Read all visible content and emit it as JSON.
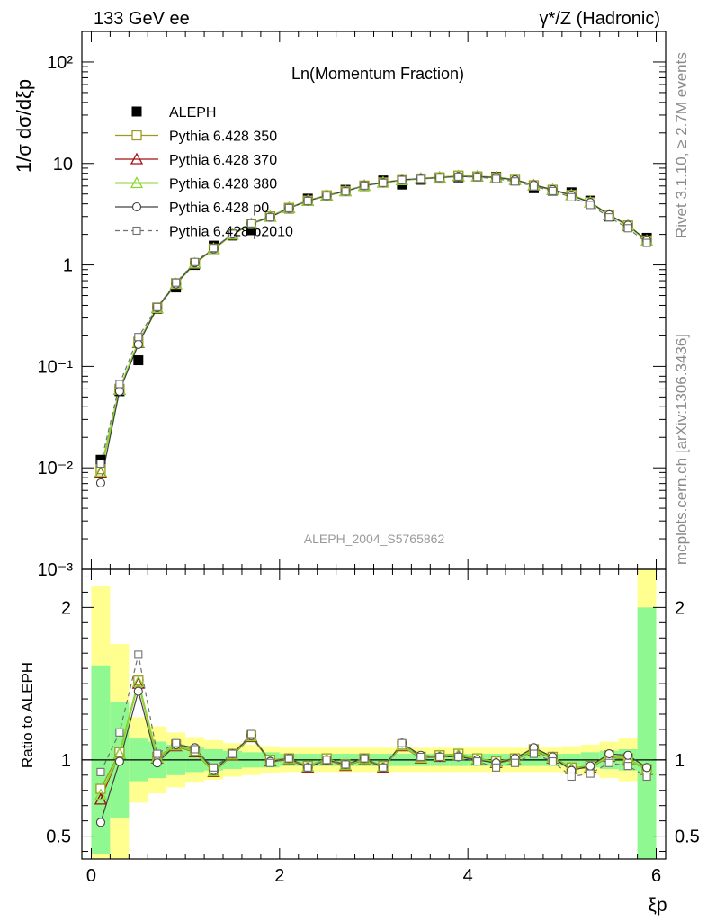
{
  "header": {
    "left": "133 GeV ee",
    "right": "γ*/Z (Hadronic)"
  },
  "plot_title": "Ln(Momentum Fraction)",
  "watermark": "ALEPH_2004_S5765862",
  "side_labels": {
    "rivet": "Rivet 3.1.10, ≥ 2.7M events",
    "mcplots": "mcplots.cern.ch [arXiv:1306.3436]"
  },
  "colors": {
    "ALEPH": "#000000",
    "Pythia 6.428 350": "#9a9a20",
    "Pythia 6.428 370": "#a01010",
    "Pythia 6.428 380": "#8ad62c",
    "Pythia 6.428 p0": "#404040",
    "Pythia 6.428 p2010": "#707070",
    "band_inner": "#90f890",
    "band_outer": "#ffff90"
  },
  "chart_data": [
    {
      "type": "scatter",
      "panel": "main",
      "ylabel": "1/σ dσ/dξp",
      "yscale": "log",
      "ylim": [
        0.001,
        200
      ],
      "xlim": [
        -0.1,
        6.1
      ],
      "yticks": [
        "10⁻³",
        "10⁻²",
        "10⁻¹",
        "1",
        "10",
        "10²"
      ],
      "x": [
        0.1,
        0.3,
        0.5,
        0.7,
        0.9,
        1.1,
        1.3,
        1.5,
        1.7,
        1.9,
        2.1,
        2.3,
        2.5,
        2.7,
        2.9,
        3.1,
        3.3,
        3.5,
        3.7,
        3.9,
        4.1,
        4.3,
        4.5,
        4.7,
        4.9,
        5.1,
        5.3,
        5.5,
        5.7,
        5.9
      ],
      "legend": [
        "ALEPH",
        "Pythia 6.428 350",
        "Pythia 6.428 370",
        "Pythia 6.428 380",
        "Pythia 6.428 p0",
        "Pythia 6.428 p2010"
      ],
      "series": [
        {
          "name": "ALEPH",
          "values": [
            0.012,
            0.057,
            0.115,
            0.37,
            0.6,
            1.0,
            1.55,
            1.95,
            2.2,
            3.0,
            3.6,
            4.5,
            4.8,
            5.5,
            6.0,
            6.8,
            6.2,
            6.9,
            7.1,
            7.3,
            7.4,
            7.4,
            6.8,
            5.7,
            5.4,
            5.2,
            4.3,
            3.0,
            2.4,
            1.85
          ]
        },
        {
          "name": "Pythia 6.428 350",
          "values": [
            0.0097,
            0.06,
            0.175,
            0.38,
            0.66,
            1.04,
            1.45,
            2.0,
            2.55,
            3.0,
            3.65,
            4.3,
            4.85,
            5.35,
            6.05,
            6.5,
            6.85,
            7.1,
            7.3,
            7.6,
            7.45,
            7.3,
            6.9,
            6.1,
            5.5,
            4.9,
            4.15,
            3.1,
            2.45,
            1.74
          ]
        },
        {
          "name": "Pythia 6.428 370",
          "values": [
            0.009,
            0.059,
            0.17,
            0.375,
            0.65,
            1.03,
            1.44,
            1.99,
            2.54,
            2.99,
            3.64,
            4.29,
            4.84,
            5.34,
            6.04,
            6.49,
            6.84,
            7.09,
            7.29,
            7.49,
            7.44,
            7.29,
            6.89,
            6.09,
            5.49,
            4.89,
            4.14,
            3.09,
            2.44,
            1.73
          ]
        },
        {
          "name": "Pythia 6.428 380",
          "values": [
            0.0092,
            0.059,
            0.172,
            0.376,
            0.652,
            1.035,
            1.445,
            1.995,
            2.545,
            2.995,
            3.645,
            4.295,
            4.845,
            5.345,
            6.045,
            6.495,
            6.845,
            7.095,
            7.295,
            7.5,
            7.445,
            7.295,
            6.895,
            6.095,
            5.495,
            4.895,
            4.145,
            3.095,
            2.445,
            1.735
          ]
        },
        {
          "name": "Pythia 6.428 p0",
          "values": [
            0.0071,
            0.057,
            0.165,
            0.38,
            0.65,
            1.05,
            1.44,
            2.02,
            2.56,
            2.96,
            3.62,
            4.28,
            4.82,
            5.32,
            6.06,
            6.46,
            6.9,
            7.08,
            7.26,
            7.45,
            7.42,
            7.28,
            6.9,
            6.15,
            5.52,
            4.85,
            4.12,
            3.12,
            2.46,
            1.75
          ]
        },
        {
          "name": "Pythia 6.428 p2010",
          "values": [
            0.011,
            0.067,
            0.195,
            0.385,
            0.67,
            1.07,
            1.47,
            2.03,
            2.57,
            2.95,
            3.63,
            4.27,
            4.81,
            5.31,
            6.05,
            6.44,
            6.88,
            7.05,
            7.22,
            7.42,
            7.35,
            7.05,
            6.65,
            5.95,
            5.35,
            4.65,
            3.9,
            2.95,
            2.3,
            1.65
          ]
        }
      ]
    },
    {
      "type": "line",
      "panel": "ratio",
      "ylabel": "Ratio to ALEPH",
      "xlabel": "ξp",
      "ylim": [
        0.35,
        2.25
      ],
      "xlim": [
        -0.1,
        6.1
      ],
      "xticks": [
        "0",
        "2",
        "4",
        "6"
      ],
      "yticks": [
        "0.5",
        "1",
        "2"
      ],
      "x": [
        0.1,
        0.3,
        0.5,
        0.7,
        0.9,
        1.1,
        1.3,
        1.5,
        1.7,
        1.9,
        2.1,
        2.3,
        2.5,
        2.7,
        2.9,
        3.1,
        3.3,
        3.5,
        3.7,
        3.9,
        4.1,
        4.3,
        4.5,
        4.7,
        4.9,
        5.1,
        5.3,
        5.5,
        5.7,
        5.9
      ],
      "band_inner": {
        "lo": [
          0.38,
          0.62,
          0.86,
          0.88,
          0.9,
          0.92,
          0.93,
          0.94,
          0.95,
          0.95,
          0.96,
          0.96,
          0.96,
          0.96,
          0.96,
          0.96,
          0.96,
          0.96,
          0.96,
          0.96,
          0.96,
          0.96,
          0.96,
          0.96,
          0.96,
          0.96,
          0.95,
          0.94,
          0.93,
          0.3
        ],
        "hi": [
          1.62,
          1.38,
          1.14,
          1.12,
          1.1,
          1.08,
          1.07,
          1.06,
          1.05,
          1.05,
          1.04,
          1.04,
          1.04,
          1.04,
          1.04,
          1.04,
          1.04,
          1.04,
          1.04,
          1.04,
          1.04,
          1.04,
          1.04,
          1.04,
          1.04,
          1.04,
          1.05,
          1.06,
          1.07,
          2.0
        ]
      },
      "band_outer": {
        "lo": [
          0.3,
          0.3,
          0.72,
          0.78,
          0.82,
          0.85,
          0.87,
          0.89,
          0.9,
          0.91,
          0.92,
          0.92,
          0.92,
          0.92,
          0.92,
          0.92,
          0.92,
          0.92,
          0.92,
          0.92,
          0.92,
          0.92,
          0.92,
          0.92,
          0.92,
          0.91,
          0.9,
          0.88,
          0.86,
          0.3
        ],
        "hi": [
          2.14,
          1.76,
          1.28,
          1.22,
          1.18,
          1.15,
          1.13,
          1.11,
          1.1,
          1.09,
          1.08,
          1.08,
          1.08,
          1.08,
          1.08,
          1.08,
          1.08,
          1.08,
          1.08,
          1.08,
          1.08,
          1.08,
          1.08,
          1.08,
          1.08,
          1.09,
          1.1,
          1.12,
          1.14,
          2.3
        ]
      },
      "series": [
        {
          "name": "Pythia 6.428 350",
          "values": [
            0.81,
            1.05,
            1.52,
            1.02,
            1.1,
            1.06,
            0.93,
            1.04,
            1.16,
            1.0,
            1.01,
            0.96,
            1.01,
            0.97,
            1.01,
            0.96,
            1.1,
            1.02,
            1.03,
            1.04,
            1.01,
            0.99,
            1.01,
            1.07,
            1.02,
            0.95,
            0.96,
            1.03,
            1.01,
            0.94
          ]
        },
        {
          "name": "Pythia 6.428 370",
          "values": [
            0.74,
            1.04,
            1.5,
            1.01,
            1.09,
            1.05,
            0.92,
            1.03,
            1.15,
            0.99,
            1.0,
            0.95,
            1.0,
            0.96,
            1.0,
            0.95,
            1.09,
            1.01,
            1.02,
            1.03,
            1.0,
            0.98,
            1.0,
            1.06,
            1.01,
            0.94,
            0.95,
            1.02,
            1.0,
            0.935
          ]
        },
        {
          "name": "Pythia 6.428 380",
          "values": [
            0.77,
            1.04,
            1.51,
            1.015,
            1.095,
            1.055,
            0.925,
            1.035,
            1.155,
            0.995,
            1.005,
            0.955,
            1.005,
            0.965,
            1.005,
            0.955,
            1.095,
            1.015,
            1.025,
            1.035,
            1.005,
            0.985,
            1.005,
            1.065,
            1.015,
            0.945,
            0.955,
            1.025,
            1.005,
            0.938
          ]
        },
        {
          "name": "Pythia 6.428 p0",
          "values": [
            0.59,
            0.99,
            1.45,
            0.98,
            1.1,
            1.08,
            0.93,
            1.04,
            1.16,
            0.99,
            1.01,
            0.95,
            1.0,
            0.97,
            1.01,
            0.95,
            1.11,
            1.03,
            1.02,
            1.02,
            1.0,
            0.98,
            1.01,
            1.08,
            1.02,
            0.93,
            0.96,
            1.04,
            1.03,
            0.95
          ]
        },
        {
          "name": "Pythia 6.428 p2010",
          "values": [
            0.92,
            1.18,
            1.69,
            1.04,
            1.11,
            1.07,
            0.95,
            1.04,
            1.17,
            0.98,
            1.01,
            0.95,
            1.0,
            0.97,
            1.01,
            0.95,
            1.11,
            1.02,
            1.02,
            1.02,
            0.99,
            0.95,
            0.98,
            1.04,
            0.99,
            0.89,
            0.91,
            0.98,
            0.96,
            0.89
          ]
        }
      ]
    }
  ]
}
